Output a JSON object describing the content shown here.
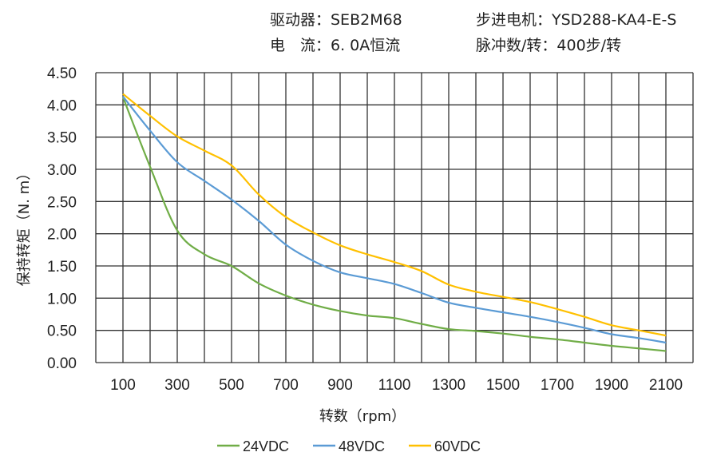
{
  "header": {
    "driver": "驱动器：SEB2M68",
    "motor": "步进电机：YSD288-KA4-E-S",
    "current": "电　流：6. 0A恒流",
    "pulses": "脉冲数/转：400步/转"
  },
  "chart_data": {
    "type": "line",
    "xlabel": "转数（rpm）",
    "ylabel": "保持转矩（N. m）",
    "xlim": [
      0,
      2200
    ],
    "ylim": [
      0,
      4.5
    ],
    "grid": true,
    "legend_position": "bottom",
    "x": [
      100,
      200,
      300,
      400,
      500,
      600,
      700,
      800,
      900,
      1000,
      1100,
      1200,
      1300,
      1400,
      1500,
      1600,
      1700,
      1800,
      1900,
      2000,
      2100
    ],
    "x_tick_labels": [
      "100",
      "300",
      "500",
      "700",
      "900",
      "1100",
      "1300",
      "1500",
      "1700",
      "1900",
      "2100"
    ],
    "y_tick_labels": [
      "0.00",
      "0.50",
      "1.00",
      "1.50",
      "2.00",
      "2.50",
      "3.00",
      "3.50",
      "4.00",
      "4.50"
    ],
    "series": [
      {
        "name": "24VDC",
        "color": "#70AD47",
        "values": [
          4.12,
          3.04,
          2.05,
          1.68,
          1.5,
          1.23,
          1.04,
          0.9,
          0.8,
          0.73,
          0.69,
          0.6,
          0.52,
          0.49,
          0.45,
          0.4,
          0.36,
          0.31,
          0.26,
          0.22,
          0.18
        ]
      },
      {
        "name": "48VDC",
        "color": "#5B9BD5",
        "values": [
          4.13,
          3.6,
          3.11,
          2.82,
          2.53,
          2.2,
          1.83,
          1.58,
          1.4,
          1.31,
          1.22,
          1.08,
          0.93,
          0.85,
          0.78,
          0.71,
          0.63,
          0.54,
          0.44,
          0.38,
          0.31
        ]
      },
      {
        "name": "60VDC",
        "color": "#FFC000",
        "values": [
          4.17,
          3.83,
          3.51,
          3.29,
          3.06,
          2.61,
          2.26,
          2.02,
          1.82,
          1.68,
          1.56,
          1.42,
          1.21,
          1.1,
          1.02,
          0.94,
          0.83,
          0.71,
          0.58,
          0.5,
          0.42
        ]
      }
    ]
  }
}
